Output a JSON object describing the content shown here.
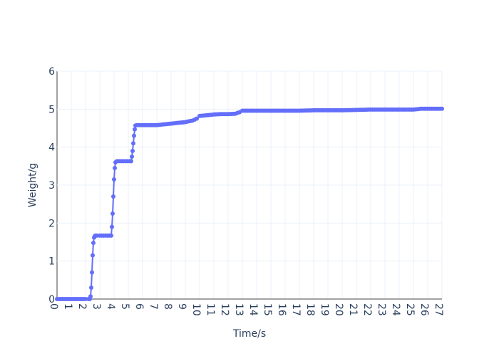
{
  "chart_data": {
    "type": "line",
    "title": "",
    "xlabel": "Time/s",
    "ylabel": "Weight/g",
    "xlim": [
      0,
      27
    ],
    "ylim": [
      0,
      6
    ],
    "x_ticks": [
      "0",
      "1",
      "2",
      "3",
      "4",
      "5",
      "6",
      "7",
      "8",
      "9",
      "10",
      "11",
      "12",
      "13",
      "14",
      "15",
      "16",
      "17",
      "18",
      "19",
      "20",
      "21",
      "22",
      "23",
      "24",
      "25",
      "26",
      "27"
    ],
    "y_ticks": [
      "0",
      "1",
      "2",
      "3",
      "4",
      "5",
      "6"
    ],
    "grid": true,
    "legend": "none",
    "mode": "lines+markers",
    "color": "#636efa",
    "series": [
      {
        "x": [
          0,
          0.5,
          1.0,
          1.5,
          2.0,
          2.2,
          2.3,
          2.35,
          2.4,
          2.45,
          2.5,
          2.55,
          2.6,
          2.65,
          2.7,
          2.8,
          3.0,
          3.4,
          3.8,
          3.85,
          3.9,
          3.95,
          4.0,
          4.05,
          4.1,
          4.2,
          4.5,
          4.8,
          5.1,
          5.2,
          5.25,
          5.3,
          5.35,
          5.4,
          5.45,
          5.5,
          5.6,
          6.0,
          6.5,
          7.0,
          7.5,
          8.0,
          8.5,
          9.0,
          9.5,
          9.8,
          10.0,
          10.5,
          11.0,
          11.5,
          12.0,
          12.5,
          12.8,
          13.0,
          13.5,
          14,
          15,
          16,
          17,
          18,
          19,
          20,
          21,
          22,
          23,
          24,
          25,
          25.5,
          26,
          27
        ],
        "y": [
          0,
          0,
          0,
          0,
          0,
          0,
          0,
          0.07,
          0.3,
          0.7,
          1.15,
          1.48,
          1.62,
          1.66,
          1.67,
          1.67,
          1.67,
          1.67,
          1.67,
          1.9,
          2.25,
          2.7,
          3.15,
          3.45,
          3.6,
          3.63,
          3.63,
          3.63,
          3.63,
          3.63,
          3.75,
          3.9,
          4.1,
          4.3,
          4.47,
          4.57,
          4.58,
          4.58,
          4.58,
          4.58,
          4.6,
          4.62,
          4.64,
          4.66,
          4.7,
          4.75,
          4.82,
          4.84,
          4.86,
          4.87,
          4.87,
          4.88,
          4.92,
          4.96,
          4.96,
          4.96,
          4.96,
          4.96,
          4.96,
          4.97,
          4.97,
          4.97,
          4.98,
          4.99,
          4.99,
          4.99,
          4.99,
          5.01,
          5.01,
          5.01
        ]
      }
    ]
  }
}
